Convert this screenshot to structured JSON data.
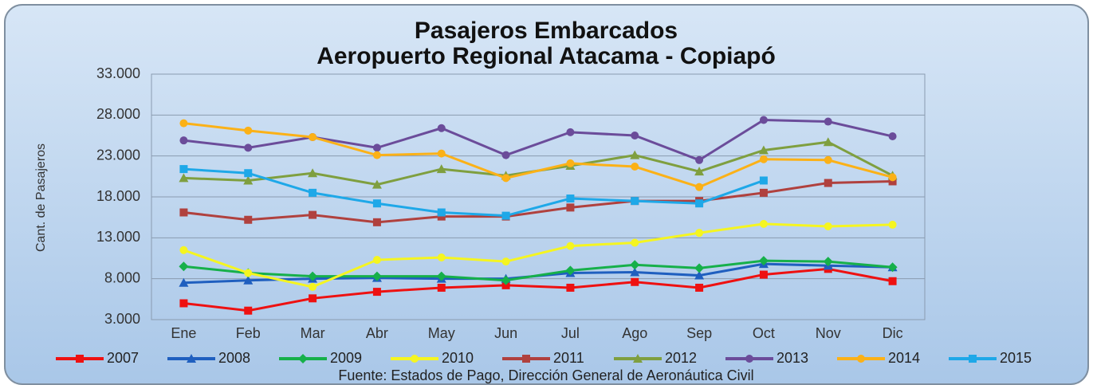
{
  "chart_data": {
    "type": "line",
    "title": "Pasajeros Embarcados",
    "subtitle": "Aeropuerto Regional Atacama - Copiapó",
    "y_label": "Cant. de Pasajeros",
    "source": "Fuente: Estados de Pago, Dirección General de Aeronáutica Civil",
    "categories": [
      "Ene",
      "Feb",
      "Mar",
      "Abr",
      "May",
      "Jun",
      "Jul",
      "Ago",
      "Sep",
      "Oct",
      "Nov",
      "Dic"
    ],
    "ylim": [
      3000,
      33000
    ],
    "yticks": [
      {
        "value": 3000,
        "label": "3.000"
      },
      {
        "value": 8000,
        "label": "8.000"
      },
      {
        "value": 13000,
        "label": "13.000"
      },
      {
        "value": 18000,
        "label": "18.000"
      },
      {
        "value": 23000,
        "label": "23.000"
      },
      {
        "value": 28000,
        "label": "28.000"
      },
      {
        "value": 33000,
        "label": "33.000"
      }
    ],
    "grid": true,
    "series": [
      {
        "name": "2007",
        "color": "#ee1111",
        "marker": "square",
        "values": [
          5000,
          4100,
          5600,
          6400,
          6900,
          7200,
          6900,
          7600,
          6900,
          8500,
          9200,
          7700
        ]
      },
      {
        "name": "2008",
        "color": "#1f5fbf",
        "marker": "triangle",
        "values": [
          7500,
          7800,
          8000,
          8100,
          8000,
          8000,
          8700,
          8800,
          8400,
          9800,
          9600,
          9400
        ]
      },
      {
        "name": "2009",
        "color": "#16b04a",
        "marker": "diamond",
        "values": [
          9500,
          8700,
          8300,
          8300,
          8300,
          7800,
          9000,
          9700,
          9300,
          10200,
          10100,
          9400
        ]
      },
      {
        "name": "2010",
        "color": "#f5f520",
        "marker": "circle",
        "values": [
          11500,
          8700,
          7000,
          10300,
          10600,
          10100,
          12000,
          12400,
          13600,
          14700,
          14400,
          14600
        ]
      },
      {
        "name": "2011",
        "color": "#b0413e",
        "marker": "square",
        "values": [
          16100,
          15200,
          15800,
          14900,
          15600,
          15600,
          16700,
          17500,
          17500,
          18500,
          19700,
          19900
        ]
      },
      {
        "name": "2012",
        "color": "#7f9f3f",
        "marker": "triangle",
        "values": [
          20300,
          20000,
          20900,
          19500,
          21400,
          20600,
          21800,
          23100,
          21100,
          23700,
          24700,
          20600
        ]
      },
      {
        "name": "2013",
        "color": "#6b4c9a",
        "marker": "circle",
        "values": [
          24900,
          24000,
          25300,
          24000,
          26400,
          23100,
          25900,
          25500,
          22500,
          27400,
          27200,
          25400
        ]
      },
      {
        "name": "2014",
        "color": "#fbb117",
        "marker": "circle",
        "values": [
          27000,
          26100,
          25300,
          23100,
          23300,
          20300,
          22100,
          21700,
          19200,
          22600,
          22500,
          20400
        ]
      },
      {
        "name": "2015",
        "color": "#1ea8e8",
        "marker": "square",
        "values": [
          21400,
          20900,
          18500,
          17200,
          16100,
          15700,
          17800,
          17500,
          17200,
          20000,
          null,
          null
        ]
      }
    ]
  }
}
